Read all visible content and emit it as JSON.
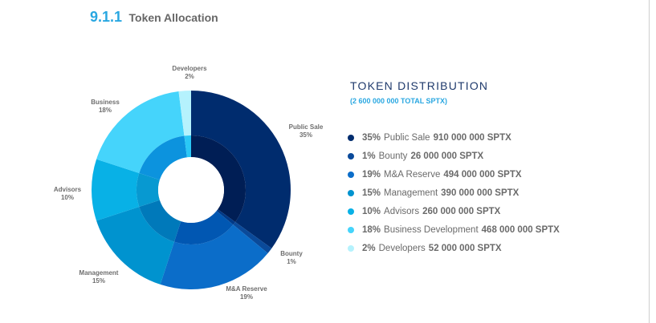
{
  "heading": {
    "number": "9.1.1",
    "title": "Token Allocation"
  },
  "distribution": {
    "title": "TOKEN DISTRIBUTION",
    "subtitle": "(2 600 000 000 TOTAL SPTX)"
  },
  "chart_data": {
    "type": "pie",
    "variant": "donut",
    "title": "Token Allocation",
    "total": "2 600 000 000 SPTX",
    "slices": [
      {
        "label": "Public Sale",
        "value": 35,
        "pct_label": "35%",
        "legend_name": "Public Sale",
        "amount": "910 000 000 SPTX",
        "color": "#002c6e",
        "inner_color": "#001e55"
      },
      {
        "label": "Bounty",
        "value": 1,
        "pct_label": "1%",
        "legend_name": "Bounty",
        "amount": "26 000 000 SPTX",
        "color": "#0a4a9a",
        "inner_color": "#003987"
      },
      {
        "label": "M&A Reserve",
        "value": 19,
        "pct_label": "19%",
        "legend_name": "M&A Reserve",
        "amount": "494 000 000 SPTX",
        "color": "#0b6dc9",
        "inner_color": "#0157b2"
      },
      {
        "label": "Management",
        "value": 15,
        "pct_label": "15%",
        "legend_name": "Management",
        "amount": "390 000 000 SPTX",
        "color": "#0093cf",
        "inner_color": "#0079ba"
      },
      {
        "label": "Advisors",
        "value": 10,
        "pct_label": "10%",
        "legend_name": "Advisors",
        "amount": "260 000 000 SPTX",
        "color": "#08b1e6",
        "inner_color": "#0799d1"
      },
      {
        "label": "Business",
        "value": 18,
        "pct_label": "18%",
        "legend_name": "Business Development",
        "amount": "468 000 000 SPTX",
        "color": "#45d4fb",
        "inner_color": "#0c93de"
      },
      {
        "label": "Developers",
        "value": 2,
        "pct_label": "2%",
        "legend_name": "Developers",
        "amount": "52 000 000 SPTX",
        "color": "#b5f2fd",
        "inner_color": "#2ac8f6"
      }
    ]
  }
}
